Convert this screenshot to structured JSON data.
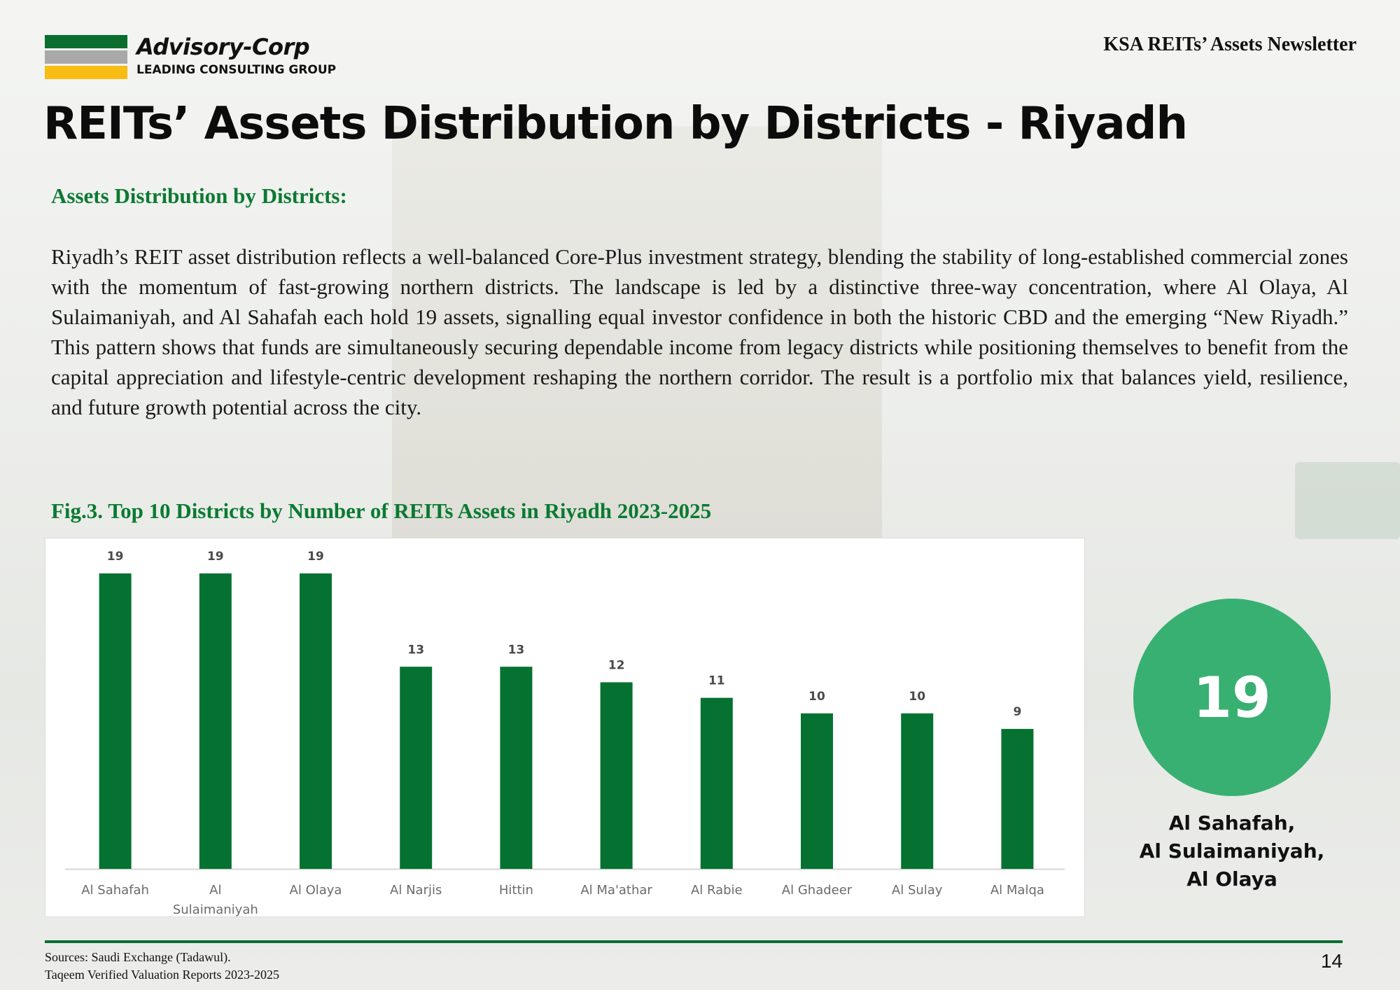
{
  "header": {
    "brand_name": "Advisory-Corp",
    "brand_tagline": "LEADING CONSULTING GROUP",
    "newsletter_title": "KSA REITs’ Assets Newsletter"
  },
  "page_title": "REITs’ Assets Distribution by Districts - Riyadh",
  "section": {
    "heading": "Assets Distribution by Districts:",
    "body": "Riyadh’s REIT asset distribution reflects a well-balanced Core-Plus investment strategy, blending the stability of long-established commercial zones with the momentum of fast-growing northern districts. The landscape is led by a distinctive three-way concentration, where Al Olaya, Al Sulaimaniyah, and Al Sahafah each hold 19 assets, signalling equal investor confidence in both the historic CBD and the emerging “New Riyadh.” This pattern shows that funds are simultaneously securing dependable income from legacy districts while positioning themselves to benefit from the capital appreciation and lifestyle-centric development reshaping the northern corridor. The result is a portfolio mix that balances yield, resilience, and future growth potential across the city."
  },
  "figure_caption": "Fig.3. Top 10 Districts by Number of REITs Assets in Riyadh 2023-2025",
  "chart_data": {
    "type": "bar",
    "title": "Fig.3. Top 10 Districts by Number of REITs Assets in Riyadh 2023-2025",
    "categories": [
      "Al Sahafah",
      "Al Sulaimaniyah",
      "Al Olaya",
      "Al Narjis",
      "Hittin",
      "Al Ma'athar",
      "Al Rabie",
      "Al Ghadeer",
      "Al Sulay",
      "Al Malqa"
    ],
    "category_lines": [
      [
        "Al Sahafah"
      ],
      [
        "Al",
        "Sulaimaniyah"
      ],
      [
        "Al Olaya"
      ],
      [
        "Al Narjis"
      ],
      [
        "Hittin"
      ],
      [
        "Al Ma'athar"
      ],
      [
        "Al Rabie"
      ],
      [
        "Al Ghadeer"
      ],
      [
        "Al Sulay"
      ],
      [
        "Al Malqa"
      ]
    ],
    "values": [
      19,
      19,
      19,
      13,
      13,
      12,
      11,
      10,
      10,
      9
    ],
    "xlabel": "",
    "ylabel": "",
    "ylim": [
      0,
      19
    ],
    "grid": false,
    "data_labels": true,
    "bar_color": "#067232"
  },
  "highlight": {
    "value": "19",
    "districts": [
      "Al Sahafah,",
      "Al Sulaimaniyah,",
      "Al Olaya"
    ],
    "circle_color": "#38b071"
  },
  "footer": {
    "sources_line1": "Sources: Saudi Exchange (Tadawul).",
    "sources_line2": "Taqeem Verified Valuation Reports 2023-2025",
    "page_number": "14"
  },
  "colors": {
    "accent_green": "#0b7a32",
    "logo_green": "#0b6e2f",
    "logo_silver": "#a9a9a9",
    "logo_yellow": "#f7bd12"
  }
}
